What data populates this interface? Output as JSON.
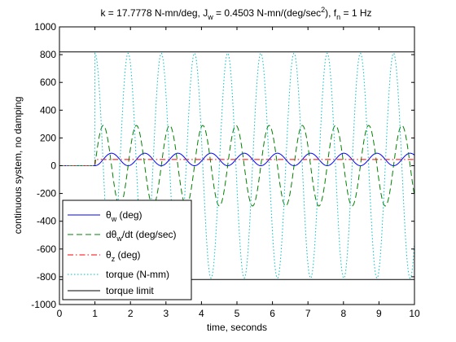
{
  "chart_data": {
    "type": "line",
    "title_parts": {
      "k_label": "k = 17.7778 N-mn/deg, J",
      "jw_sub": "w",
      "jw_value": " = 0.4503 N-mn/(deg/sec",
      "sq": "2",
      "fn_pre": "), f",
      "fn_sub": "n",
      "fn_value": " = 1 Hz"
    },
    "xlabel": "time, seconds",
    "ylabel": "continuous system, no damping",
    "xlim": [
      0,
      10
    ],
    "ylim": [
      -1000,
      1000
    ],
    "xticks": [
      0,
      1,
      2,
      3,
      4,
      5,
      6,
      7,
      8,
      9,
      10
    ],
    "xtick_labels": [
      "0",
      "1",
      "2",
      "3",
      "4",
      "5",
      "6",
      "7",
      "8",
      "9",
      "10"
    ],
    "yticks": [
      -1000,
      -800,
      -600,
      -400,
      -200,
      0,
      200,
      400,
      600,
      800,
      1000
    ],
    "ytick_labels": [
      "-1000",
      "-800",
      "-600",
      "-400",
      "-200",
      "0",
      "200",
      "400",
      "600",
      "800",
      "1000"
    ],
    "grid": false,
    "legend_position": "bottom-left",
    "series": [
      {
        "name": "theta_w",
        "legend": {
          "main": "θ",
          "sub": "w",
          "rest": " (deg)"
        },
        "color": "#0000ff",
        "style": "solid",
        "start": 1.0,
        "offset": 45,
        "amplitude": 45,
        "freq": 1.07,
        "phase": 3.14159,
        "unit": "deg"
      },
      {
        "name": "dtheta_w_dt",
        "legend": {
          "main": "dθ",
          "sub": "w",
          "rest": "/dt (deg/sec)"
        },
        "color": "#008000",
        "style": "dashed",
        "start": 1.0,
        "offset": 0,
        "amplitude": 290,
        "freq": 1.07,
        "phase": 0,
        "unit": "deg/sec"
      },
      {
        "name": "theta_z",
        "legend": {
          "main": "θ",
          "sub": "z",
          "rest": " (deg)"
        },
        "color": "#ff0000",
        "style": "dashdot",
        "start": 1.0,
        "offset": 45,
        "amplitude": 0,
        "freq": 0,
        "phase": 0,
        "unit": "deg"
      },
      {
        "name": "torque",
        "legend": {
          "main": "torque (N-mm)",
          "sub": "",
          "rest": ""
        },
        "color": "#00bfbf",
        "style": "dotted",
        "start": 1.0,
        "offset": 0,
        "amplitude": 810,
        "freq": 1.07,
        "phase": 1.5708,
        "unit": "N-mm"
      }
    ],
    "torque_limit": {
      "legend": {
        "main": "torque limit",
        "sub": "",
        "rest": ""
      },
      "color": "#000000",
      "style": "solid",
      "values": [
        820,
        -820
      ]
    }
  }
}
